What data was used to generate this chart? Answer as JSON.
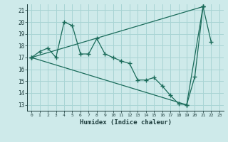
{
  "xlabel": "Humidex (Indice chaleur)",
  "bg_color": "#ceeaea",
  "grid_color": "#a8d4d4",
  "line_color": "#1a6b5a",
  "xlim": [
    -0.5,
    23.5
  ],
  "ylim": [
    12.5,
    21.5
  ],
  "yticks": [
    13,
    14,
    15,
    16,
    17,
    18,
    19,
    20,
    21
  ],
  "xticks": [
    0,
    1,
    2,
    3,
    4,
    5,
    6,
    7,
    8,
    9,
    10,
    11,
    12,
    13,
    14,
    15,
    16,
    17,
    18,
    19,
    20,
    21,
    22,
    23
  ],
  "line1_x": [
    0,
    1,
    2,
    3,
    4,
    5,
    6,
    7,
    8,
    9,
    10,
    11,
    12,
    13,
    14,
    15,
    16,
    17,
    18,
    19,
    20,
    21,
    22
  ],
  "line1_y": [
    17.0,
    17.5,
    17.8,
    17.0,
    20.0,
    19.7,
    17.3,
    17.3,
    18.6,
    17.3,
    17.0,
    16.7,
    16.5,
    15.1,
    15.1,
    15.3,
    14.6,
    13.8,
    13.1,
    13.0,
    15.4,
    21.3,
    18.3
  ],
  "line2_x": [
    0,
    21
  ],
  "line2_y": [
    17.0,
    21.3
  ],
  "line3_x": [
    0,
    19,
    21
  ],
  "line3_y": [
    17.0,
    13.0,
    21.3
  ]
}
